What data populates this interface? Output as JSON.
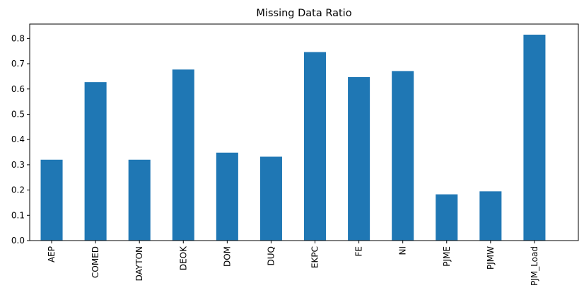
{
  "chart_data": {
    "type": "bar",
    "title": "Missing Data Ratio",
    "xlabel": "",
    "ylabel": "",
    "categories": [
      "AEP",
      "COMED",
      "DAYTON",
      "DEOK",
      "DOM",
      "DUQ",
      "EKPC",
      "FE",
      "NI",
      "PJME",
      "PJMW",
      "PJM_Load"
    ],
    "values": [
      0.32,
      0.627,
      0.32,
      0.677,
      0.348,
      0.332,
      0.746,
      0.647,
      0.671,
      0.183,
      0.195,
      0.815
    ],
    "ylim": [
      0,
      0.857
    ],
    "yticks": [
      0.0,
      0.1,
      0.2,
      0.3,
      0.4,
      0.5,
      0.6,
      0.7,
      0.8
    ],
    "ytick_labels": [
      "0.0",
      "0.1",
      "0.2",
      "0.3",
      "0.4",
      "0.5",
      "0.6",
      "0.7",
      "0.8"
    ],
    "grid": false,
    "legend": "none",
    "bar_color": "#1f77b4"
  }
}
